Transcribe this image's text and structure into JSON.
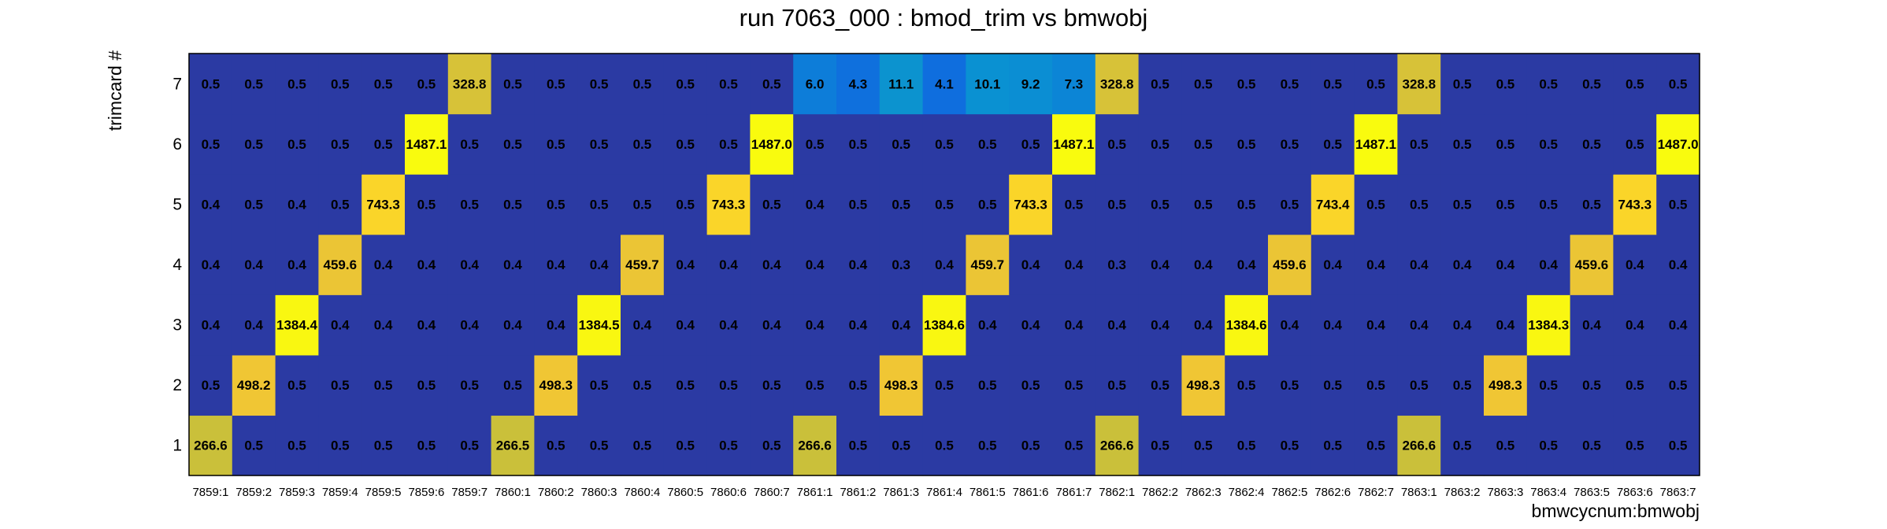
{
  "chart_data": {
    "type": "heatmap",
    "title": "run 7063_000 : bmod_trim vs bmwobj",
    "xlabel": "bmwcycnum:bmwobj",
    "ylabel": "trimcard #",
    "x_categories": [
      "7859:1",
      "7859:2",
      "7859:3",
      "7859:4",
      "7859:5",
      "7859:6",
      "7859:7",
      "7860:1",
      "7860:2",
      "7860:3",
      "7860:4",
      "7860:5",
      "7860:6",
      "7860:7",
      "7861:1",
      "7861:2",
      "7861:3",
      "7861:4",
      "7861:5",
      "7861:6",
      "7861:7",
      "7862:1",
      "7862:2",
      "7862:3",
      "7862:4",
      "7862:5",
      "7862:6",
      "7862:7",
      "7863:1",
      "7863:2",
      "7863:3",
      "7863:4",
      "7863:5",
      "7863:6",
      "7863:7"
    ],
    "y_categories": [
      "1",
      "2",
      "3",
      "4",
      "5",
      "6",
      "7"
    ],
    "values": [
      [
        "266.6",
        "0.5",
        "0.5",
        "0.5",
        "0.5",
        "0.5",
        "0.5",
        "266.5",
        "0.5",
        "0.5",
        "0.5",
        "0.5",
        "0.5",
        "0.5",
        "266.6",
        "0.5",
        "0.5",
        "0.5",
        "0.5",
        "0.5",
        "0.5",
        "266.6",
        "0.5",
        "0.5",
        "0.5",
        "0.5",
        "0.5",
        "0.5",
        "266.6",
        "0.5",
        "0.5",
        "0.5",
        "0.5",
        "0.5",
        "0.5"
      ],
      [
        "0.5",
        "498.2",
        "0.5",
        "0.5",
        "0.5",
        "0.5",
        "0.5",
        "0.5",
        "498.3",
        "0.5",
        "0.5",
        "0.5",
        "0.5",
        "0.5",
        "0.5",
        "0.5",
        "498.3",
        "0.5",
        "0.5",
        "0.5",
        "0.5",
        "0.5",
        "0.5",
        "498.3",
        "0.5",
        "0.5",
        "0.5",
        "0.5",
        "0.5",
        "0.5",
        "498.3",
        "0.5",
        "0.5",
        "0.5",
        "0.5"
      ],
      [
        "0.4",
        "0.4",
        "1384.4",
        "0.4",
        "0.4",
        "0.4",
        "0.4",
        "0.4",
        "0.4",
        "1384.5",
        "0.4",
        "0.4",
        "0.4",
        "0.4",
        "0.4",
        "0.4",
        "0.4",
        "1384.6",
        "0.4",
        "0.4",
        "0.4",
        "0.4",
        "0.4",
        "0.4",
        "1384.6",
        "0.4",
        "0.4",
        "0.4",
        "0.4",
        "0.4",
        "0.4",
        "1384.3",
        "0.4",
        "0.4",
        "0.4"
      ],
      [
        "0.4",
        "0.4",
        "0.4",
        "459.6",
        "0.4",
        "0.4",
        "0.4",
        "0.4",
        "0.4",
        "0.4",
        "459.7",
        "0.4",
        "0.4",
        "0.4",
        "0.4",
        "0.4",
        "0.3",
        "0.4",
        "459.7",
        "0.4",
        "0.4",
        "0.3",
        "0.4",
        "0.4",
        "0.4",
        "459.6",
        "0.4",
        "0.4",
        "0.4",
        "0.4",
        "0.4",
        "0.4",
        "459.6",
        "0.4",
        "0.4"
      ],
      [
        "0.4",
        "0.5",
        "0.4",
        "0.5",
        "743.3",
        "0.5",
        "0.5",
        "0.5",
        "0.5",
        "0.5",
        "0.5",
        "0.5",
        "743.3",
        "0.5",
        "0.4",
        "0.5",
        "0.5",
        "0.5",
        "0.5",
        "743.3",
        "0.5",
        "0.5",
        "0.5",
        "0.5",
        "0.5",
        "0.5",
        "743.4",
        "0.5",
        "0.5",
        "0.5",
        "0.5",
        "0.5",
        "0.5",
        "743.3",
        "0.5"
      ],
      [
        "0.5",
        "0.5",
        "0.5",
        "0.5",
        "0.5",
        "1487.1",
        "0.5",
        "0.5",
        "0.5",
        "0.5",
        "0.5",
        "0.5",
        "0.5",
        "1487.0",
        "0.5",
        "0.5",
        "0.5",
        "0.5",
        "0.5",
        "0.5",
        "1487.1",
        "0.5",
        "0.5",
        "0.5",
        "0.5",
        "0.5",
        "0.5",
        "1487.1",
        "0.5",
        "0.5",
        "0.5",
        "0.5",
        "0.5",
        "0.5",
        "1487.0"
      ],
      [
        "0.5",
        "0.5",
        "0.5",
        "0.5",
        "0.5",
        "0.5",
        "328.8",
        "0.5",
        "0.5",
        "0.5",
        "0.5",
        "0.5",
        "0.5",
        "0.5",
        "6.0",
        "4.3",
        "11.1",
        "4.1",
        "10.1",
        "9.2",
        "7.3",
        "328.8",
        "0.5",
        "0.5",
        "0.5",
        "0.5",
        "0.5",
        "0.5",
        "328.8",
        "0.5",
        "0.5",
        "0.5",
        "0.5",
        "0.5",
        "0.5"
      ]
    ],
    "values_extra_row7_tail": [
      "0.5",
      "328.8"
    ],
    "grid": false,
    "legend": "none"
  }
}
